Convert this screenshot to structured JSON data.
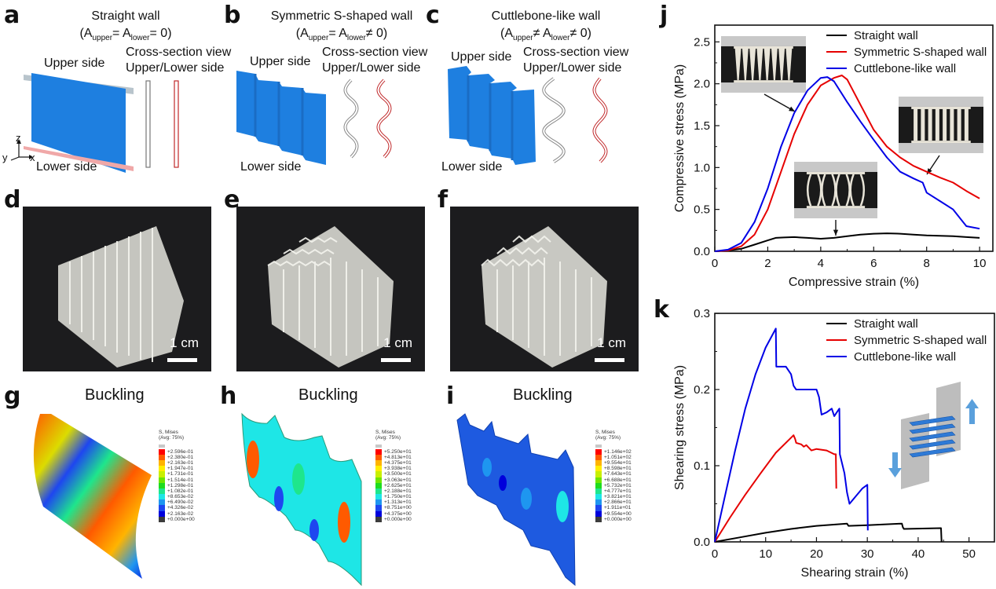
{
  "panels": {
    "a": {
      "label": "a",
      "title": "Straight wall",
      "formula": "(A_upper = A_lower = 0)",
      "formula_main": "(A",
      "sub1": "upper",
      "mid": "= A",
      "sub2": "lower",
      "tail": "= 0)",
      "upper": "Upper side",
      "lower": "Lower side",
      "cs1": "Cross-section view",
      "cs2": "Upper/Lower side",
      "axes": {
        "z": "z",
        "y": "y",
        "x": "x"
      }
    },
    "b": {
      "label": "b",
      "title": "Symmetric S-shaped wall",
      "formula_main": "(A",
      "sub1": "upper",
      "mid": "= A",
      "sub2": "lower",
      "tail": "≠ 0)",
      "upper": "Upper side",
      "lower": "Lower side",
      "cs1": "Cross-section view",
      "cs2": "Upper/Lower side"
    },
    "c": {
      "label": "c",
      "title": "Cuttlebone-like wall",
      "formula_main": "(A",
      "sub1": "upper",
      "mid": "≠ A",
      "sub2": "lower",
      "tail": "≠ 0)",
      "upper": "Upper side",
      "lower": "Lower side",
      "cs1": "Cross-section view",
      "cs2": "Upper/Lower side"
    },
    "d": {
      "label": "d",
      "scale": "1 cm"
    },
    "e": {
      "label": "e",
      "scale": "1 cm"
    },
    "f": {
      "label": "f",
      "scale": "1 cm"
    },
    "g": {
      "label": "g",
      "title": "Buckling",
      "legend_title1": "S, Mises",
      "legend_title2": "(Avg: 75%)",
      "legend_values": [
        "+2.596e-01",
        "+2.380e-01",
        "+2.163e-01",
        "+1.947e-01",
        "+1.731e-01",
        "+1.514e-01",
        "+1.298e-01",
        "+1.082e-01",
        "+8.653e-02",
        "+6.490e-02",
        "+4.326e-02",
        "+2.163e-02",
        "+0.000e+00"
      ]
    },
    "h": {
      "label": "h",
      "title": "Buckling",
      "legend_title1": "S, Mises",
      "legend_title2": "(Avg: 75%)",
      "legend_values": [
        "+5.250e+01",
        "+4.813e+01",
        "+4.375e+01",
        "+3.938e+01",
        "+3.500e+01",
        "+3.063e+01",
        "+2.625e+01",
        "+2.188e+01",
        "+1.750e+01",
        "+1.313e+01",
        "+8.751e+00",
        "+4.375e+00",
        "+0.000e+00"
      ]
    },
    "i": {
      "label": "i",
      "title": "Buckling",
      "legend_title1": "S, Mises",
      "legend_title2": "(Avg: 75%)",
      "legend_values": [
        "+1.146e+02",
        "+1.051e+02",
        "+9.554e+01",
        "+8.598e+01",
        "+7.643e+01",
        "+6.688e+01",
        "+5.732e+01",
        "+4.777e+01",
        "+3.821e+01",
        "+2.866e+01",
        "+1.911e+01",
        "+9.554e+00",
        "+0.000e+00"
      ]
    }
  },
  "contour_colors": [
    "#c8c8c8",
    "#ff0000",
    "#ff5a00",
    "#ffb400",
    "#ffee00",
    "#c8f000",
    "#6ee600",
    "#1edc1e",
    "#1ee68c",
    "#1ee6e6",
    "#1e96f0",
    "#1e46f0",
    "#0000dc",
    "#3c3c3c"
  ],
  "series_colors": {
    "Straight wall": "#000000",
    "Symmetric S-shaped wall": "#e60000",
    "Cuttlebone-like wall": "#0000e6"
  },
  "chart_data": [
    {
      "panel": "j",
      "type": "line",
      "title": "",
      "xlabel": "Compressive strain (%)",
      "ylabel": "Compressive stress (MPa)",
      "xlim": [
        0,
        10.5
      ],
      "ylim": [
        0,
        2.7
      ],
      "xticks": [
        0,
        2,
        4,
        6,
        8,
        10
      ],
      "xtick_labels": [
        "0",
        "2",
        "4",
        "6",
        "8",
        "10"
      ],
      "yticks": [
        0,
        0.5,
        1.0,
        1.5,
        2.0,
        2.5
      ],
      "ytick_labels": [
        "0.0",
        "0.5",
        "1.0",
        "1.5",
        "2.0",
        "2.5"
      ],
      "legend": "top-right",
      "series": [
        {
          "name": "Straight wall",
          "x": [
            0,
            0.5,
            1,
            1.5,
            2,
            2.3,
            2.6,
            3,
            3.5,
            4,
            4.5,
            5,
            5.5,
            6,
            6.5,
            7,
            7.5,
            8,
            8.5,
            9,
            9.5,
            10
          ],
          "y": [
            0,
            0.01,
            0.03,
            0.08,
            0.13,
            0.16,
            0.165,
            0.17,
            0.16,
            0.15,
            0.16,
            0.18,
            0.2,
            0.21,
            0.215,
            0.21,
            0.2,
            0.19,
            0.185,
            0.18,
            0.17,
            0.16
          ]
        },
        {
          "name": "Symmetric S-shaped wall",
          "x": [
            0,
            0.5,
            1,
            1.5,
            2,
            2.5,
            3,
            3.5,
            4,
            4.5,
            4.8,
            5,
            5.5,
            6,
            6.5,
            7,
            7.5,
            8,
            8.5,
            9,
            9.5,
            10
          ],
          "y": [
            0,
            0.01,
            0.06,
            0.2,
            0.5,
            0.95,
            1.4,
            1.75,
            1.98,
            2.07,
            2.1,
            2.05,
            1.75,
            1.45,
            1.25,
            1.12,
            1.02,
            0.95,
            0.88,
            0.82,
            0.72,
            0.63
          ]
        },
        {
          "name": "Cuttlebone-like wall",
          "x": [
            0,
            0.5,
            1,
            1.5,
            2,
            2.5,
            3,
            3.5,
            4,
            4.25,
            4.5,
            5,
            5.5,
            6,
            6.5,
            7,
            7.5,
            7.85,
            8,
            8.5,
            9,
            9.3,
            9.5,
            10
          ],
          "y": [
            0,
            0.02,
            0.1,
            0.35,
            0.75,
            1.25,
            1.65,
            1.92,
            2.07,
            2.08,
            2.03,
            1.78,
            1.55,
            1.33,
            1.12,
            0.95,
            0.87,
            0.82,
            0.7,
            0.6,
            0.5,
            0.38,
            0.3,
            0.27
          ]
        }
      ],
      "annotations": [
        "inset photo: initial state",
        "inset photo: buckled straight walls",
        "inset photo: post-peak S-shaped walls"
      ]
    },
    {
      "panel": "k",
      "type": "line",
      "title": "",
      "xlabel": "Shearing strain (%)",
      "ylabel": "Shearing stress (MPa)",
      "xlim": [
        0,
        55
      ],
      "ylim": [
        0,
        0.3
      ],
      "xticks": [
        0,
        10,
        20,
        30,
        40,
        50
      ],
      "xtick_labels": [
        "0",
        "10",
        "20",
        "30",
        "40",
        "50"
      ],
      "yticks": [
        0,
        0.1,
        0.2,
        0.3
      ],
      "ytick_labels": [
        "0.0",
        "0.1",
        "0.2",
        "0.3"
      ],
      "legend": "top-right",
      "series": [
        {
          "name": "Straight wall",
          "x": [
            0,
            5,
            10,
            15,
            20,
            26,
            26.3,
            30,
            36.8,
            37,
            37.2,
            44.5,
            44.6
          ],
          "y": [
            0,
            0.006,
            0.012,
            0.017,
            0.021,
            0.024,
            0.021,
            0.022,
            0.024,
            0.019,
            0.017,
            0.018,
            0
          ]
        },
        {
          "name": "Symmetric S-shaped wall",
          "x": [
            0,
            3,
            6,
            9,
            12,
            15.5,
            15.8,
            16,
            17,
            17.5,
            18,
            19,
            20,
            22,
            23.5,
            23.8,
            23.9
          ],
          "y": [
            0,
            0.032,
            0.062,
            0.09,
            0.117,
            0.14,
            0.135,
            0.13,
            0.128,
            0.125,
            0.127,
            0.12,
            0.122,
            0.12,
            0.115,
            0.115,
            0.07
          ]
        },
        {
          "name": "Cuttlebone-like wall",
          "x": [
            0,
            2,
            4,
            6,
            8,
            10,
            12,
            12.1,
            14,
            15,
            15.5,
            16,
            18,
            20,
            20.5,
            21,
            22,
            23,
            23.5,
            24,
            24.5,
            24.6,
            25.5,
            26,
            26.5,
            29,
            30,
            30.1
          ],
          "y": [
            0,
            0.06,
            0.12,
            0.175,
            0.22,
            0.255,
            0.28,
            0.23,
            0.23,
            0.22,
            0.205,
            0.2,
            0.2,
            0.2,
            0.19,
            0.167,
            0.17,
            0.175,
            0.165,
            0.17,
            0.175,
            0.115,
            0.09,
            0.065,
            0.05,
            0.07,
            0.075,
            0.015
          ]
        }
      ],
      "annotations": [
        "inset schematic: shear loading with arrows"
      ]
    }
  ]
}
